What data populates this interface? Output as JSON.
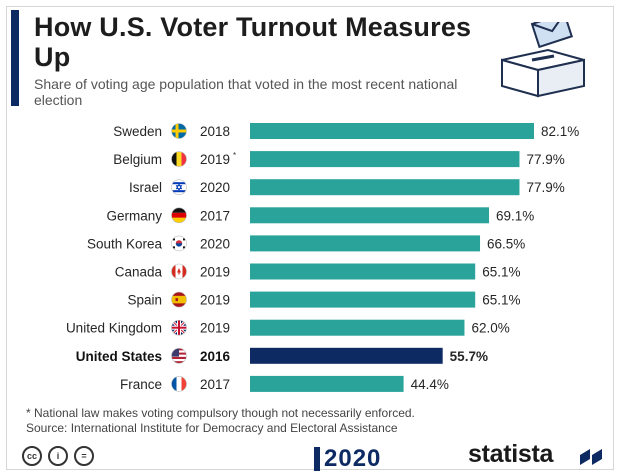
{
  "header": {
    "title": "How U.S. Voter Turnout Measures Up",
    "subtitle": "Share of voting age population that voted in the most recent national election"
  },
  "chart_data": {
    "type": "bar",
    "orientation": "horizontal",
    "title": "How U.S. Voter Turnout Measures Up",
    "subtitle": "Share of voting age population that voted in the most recent national election",
    "xlim": [
      0,
      82.1
    ],
    "unit": "%",
    "grid": false,
    "legend": false,
    "bar_color": "#2aa39a",
    "highlight_color": "#0e2a63",
    "items": [
      {
        "country": "Sweden",
        "year": "2018",
        "value": 82.1,
        "label": "82.1%",
        "flag": "sweden-flag-icon"
      },
      {
        "country": "Belgium",
        "year": "2019",
        "note": "*",
        "value": 77.9,
        "label": "77.9%",
        "flag": "belgium-flag-icon"
      },
      {
        "country": "Israel",
        "year": "2020",
        "value": 77.9,
        "label": "77.9%",
        "flag": "israel-flag-icon"
      },
      {
        "country": "Germany",
        "year": "2017",
        "value": 69.1,
        "label": "69.1%",
        "flag": "germany-flag-icon"
      },
      {
        "country": "South Korea",
        "year": "2020",
        "value": 66.5,
        "label": "66.5%",
        "flag": "south-korea-flag-icon"
      },
      {
        "country": "Canada",
        "year": "2019",
        "value": 65.1,
        "label": "65.1%",
        "flag": "canada-flag-icon"
      },
      {
        "country": "Spain",
        "year": "2019",
        "value": 65.1,
        "label": "65.1%",
        "flag": "spain-flag-icon"
      },
      {
        "country": "United Kingdom",
        "year": "2019",
        "value": 62.0,
        "label": "62.0%",
        "flag": "uk-flag-icon"
      },
      {
        "country": "United States",
        "year": "2016",
        "value": 55.7,
        "label": "55.7%",
        "flag": "us-flag-icon",
        "highlight": true
      },
      {
        "country": "France",
        "year": "2017",
        "value": 44.4,
        "label": "44.4%",
        "flag": "france-flag-icon"
      }
    ]
  },
  "footnote": {
    "note": "* National law makes voting compulsory though not necessarily enforced.",
    "source": "Source: International Institute for Democracy and Electoral Assistance"
  },
  "footer": {
    "cc_icons": [
      "cc",
      "i",
      "="
    ],
    "election_logo": "2020",
    "brand": "statista"
  },
  "icons": [
    "ballot-box-icon",
    "statista-logo-icon"
  ]
}
